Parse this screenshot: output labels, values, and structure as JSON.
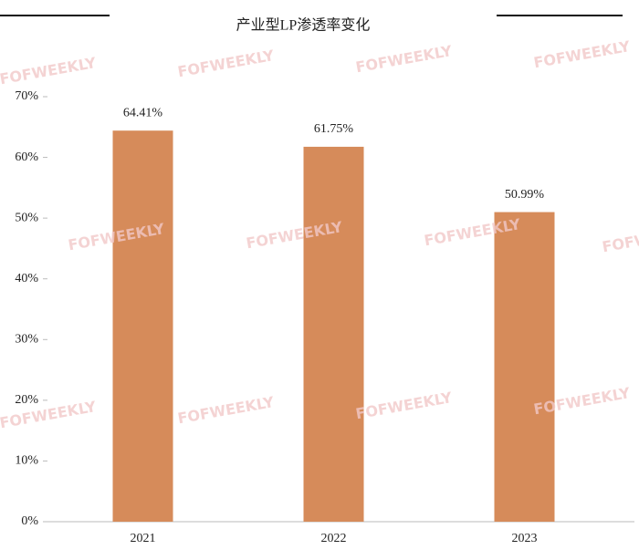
{
  "chart_data": {
    "type": "bar",
    "title": "产业型LP渗透率变化",
    "watermark": "FOFWEEKLY",
    "categories": [
      "2021",
      "2022",
      "2023"
    ],
    "values": [
      64.41,
      61.75,
      50.99
    ],
    "value_labels": [
      "64.41%",
      "61.75%",
      "50.99%"
    ],
    "color": "#d68b5a",
    "ylim": [
      0,
      70
    ],
    "yticks": [
      {
        "value": 0,
        "label": "0%"
      },
      {
        "value": 10,
        "label": "10%"
      },
      {
        "value": 20,
        "label": "20%"
      },
      {
        "value": 30,
        "label": "30%"
      },
      {
        "value": 40,
        "label": "40%"
      },
      {
        "value": 50,
        "label": "50%"
      },
      {
        "value": 60,
        "label": "60%"
      },
      {
        "value": 70,
        "label": "70%"
      }
    ],
    "grid": false
  }
}
